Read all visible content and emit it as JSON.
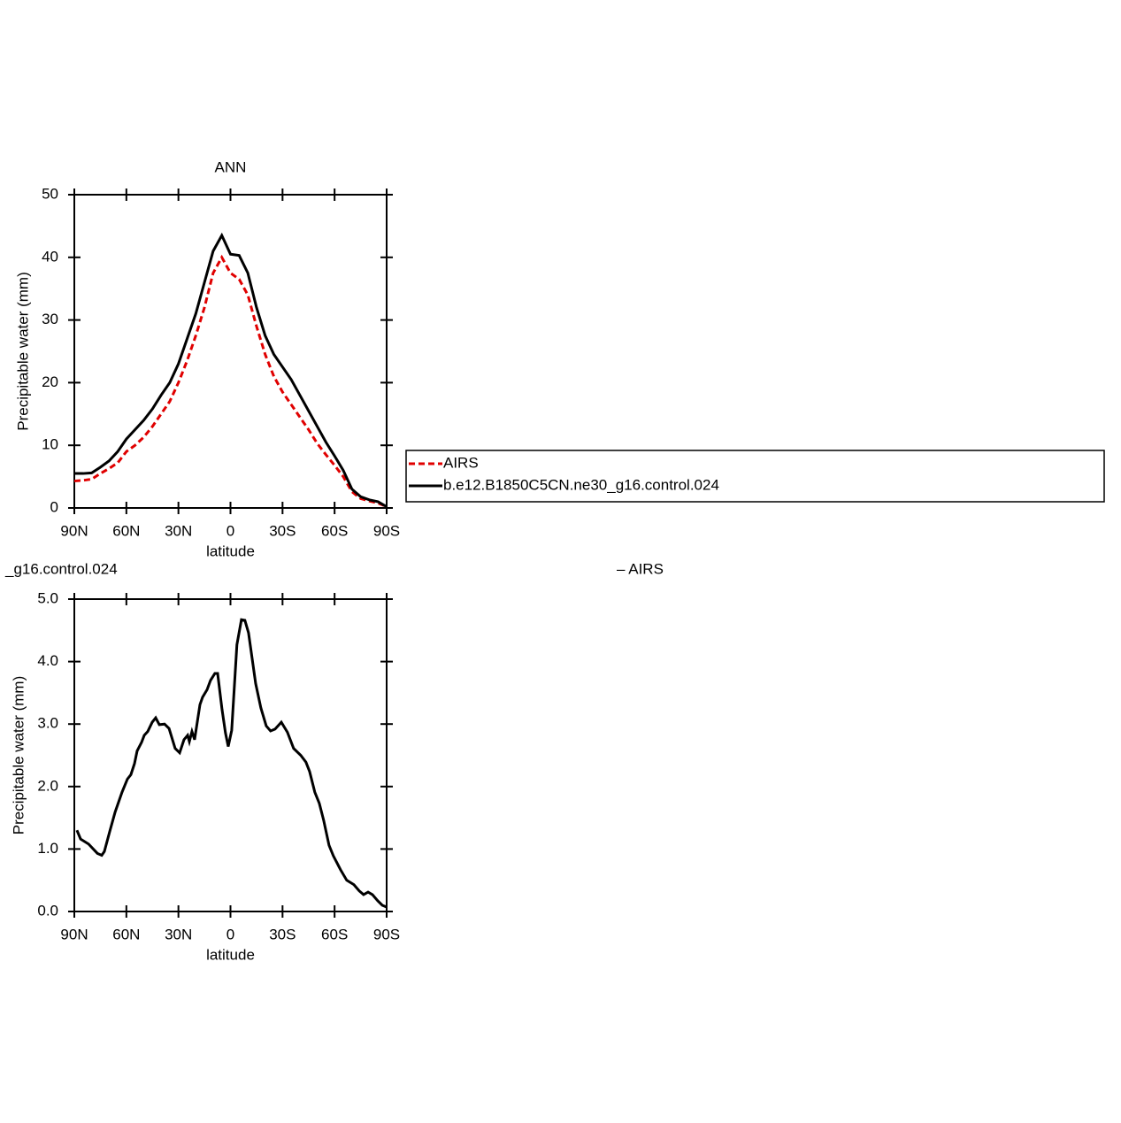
{
  "chart_data": [
    {
      "type": "line",
      "title": "ANN",
      "xlabel": "latitude",
      "ylabel": "Precipitable water (mm)",
      "xlim": [
        90,
        -90
      ],
      "ylim": [
        0,
        50
      ],
      "xticks": [
        {
          "value": 90,
          "label": "90N"
        },
        {
          "value": 60,
          "label": "60N"
        },
        {
          "value": 30,
          "label": "30N"
        },
        0,
        {
          "value": -30,
          "label": "30S"
        },
        {
          "value": -60,
          "label": "60S"
        },
        {
          "value": -90,
          "label": "90S"
        }
      ],
      "yticks": [
        0,
        10,
        20,
        30,
        40,
        50
      ],
      "x": [
        90,
        85,
        80,
        75,
        70,
        65,
        60,
        55,
        50,
        45,
        40,
        35,
        30,
        25,
        20,
        15,
        10,
        5,
        0,
        -5,
        -10,
        -15,
        -20,
        -25,
        -30,
        -35,
        -40,
        -45,
        -50,
        -55,
        -60,
        -65,
        -70,
        -75,
        -80,
        -85,
        -90
      ],
      "series": [
        {
          "name": "AIRS",
          "color": "#e00000",
          "dashed": true,
          "values": [
            4.3,
            4.4,
            4.6,
            5.5,
            6.3,
            7.2,
            9,
            10,
            11.3,
            13,
            15,
            17,
            20,
            23.5,
            27.5,
            32,
            37.5,
            40,
            37.5,
            36.5,
            34,
            29,
            24.5,
            21,
            18.5,
            16.5,
            14.5,
            12.5,
            10.3,
            8.5,
            6.8,
            5,
            2.6,
            1.5,
            1.1,
            0.8,
            0.2
          ]
        },
        {
          "name": "b.e12.B1850C5CN.ne30_g16.control.024",
          "color": "#000000",
          "dashed": false,
          "values": [
            5.5,
            5.5,
            5.6,
            6.5,
            7.5,
            9,
            11,
            12.5,
            14,
            15.8,
            18,
            20,
            23,
            27,
            31,
            36,
            41,
            43.5,
            40.5,
            40.3,
            37.5,
            32,
            27.5,
            24.5,
            22.5,
            20.5,
            18,
            15.5,
            13,
            10.5,
            8.3,
            6,
            3,
            1.8,
            1.3,
            1.0,
            0.2
          ]
        }
      ]
    },
    {
      "type": "line",
      "left_title": "_g16.control.024",
      "right_title": "– AIRS",
      "xlabel": "latitude",
      "ylabel": "Precipitable water (mm)",
      "xlim": [
        90,
        -90
      ],
      "ylim": [
        0,
        5
      ],
      "xticks": [
        {
          "value": 90,
          "label": "90N"
        },
        {
          "value": 60,
          "label": "60N"
        },
        {
          "value": 30,
          "label": "30N"
        },
        0,
        {
          "value": -30,
          "label": "30S"
        },
        {
          "value": -60,
          "label": "60S"
        },
        {
          "value": -90,
          "label": "90S"
        }
      ],
      "yticks": [
        {
          "value": 0,
          "label": "0.0"
        },
        {
          "value": 1,
          "label": "1.0"
        },
        {
          "value": 2,
          "label": "2.0"
        },
        {
          "value": 3,
          "label": "3.0"
        },
        {
          "value": 4,
          "label": "4.0"
        },
        {
          "value": 5,
          "label": "5.0"
        }
      ],
      "color": "#000000",
      "x": [
        88.5,
        86.4,
        81.8,
        76.7,
        74.2,
        72.7,
        69.6,
        66.5,
        62.5,
        59.4,
        57.4,
        55.3,
        53.8,
        51.2,
        49.7,
        47.7,
        45.1,
        43.1,
        41.0,
        38.0,
        35.4,
        31.9,
        29.3,
        26.8,
        24.7,
        23.7,
        22.2,
        20.7,
        17.6,
        16.1,
        13.5,
        11.5,
        9.0,
        7.4,
        4.9,
        2.9,
        1.3,
        -0.7,
        -3.7,
        -6.3,
        -8.3,
        -10.4,
        -14.5,
        -17.5,
        -20.6,
        -23.1,
        -25.7,
        -29.3,
        -32.8,
        -36.4,
        -40.5,
        -43.5,
        -45.6,
        -48.6,
        -51.2,
        -53.7,
        -56.8,
        -59.3,
        -63.4,
        -67.0,
        -71.1,
        -74.2,
        -76.7,
        -79.3,
        -81.8,
        -84.9,
        -87.5,
        -90
      ],
      "values": [
        1.3,
        1.16,
        1.08,
        0.93,
        0.9,
        0.96,
        1.28,
        1.59,
        1.91,
        2.12,
        2.19,
        2.37,
        2.57,
        2.71,
        2.82,
        2.88,
        3.03,
        3.1,
        2.99,
        3.0,
        2.93,
        2.61,
        2.54,
        2.75,
        2.82,
        2.72,
        2.88,
        2.75,
        3.31,
        3.43,
        3.55,
        3.7,
        3.81,
        3.81,
        3.24,
        2.86,
        2.64,
        2.9,
        4.27,
        4.67,
        4.66,
        4.46,
        3.65,
        3.26,
        2.97,
        2.89,
        2.92,
        3.03,
        2.87,
        2.61,
        2.5,
        2.39,
        2.24,
        1.91,
        1.73,
        1.46,
        1.06,
        0.89,
        0.67,
        0.5,
        0.43,
        0.33,
        0.27,
        0.31,
        0.27,
        0.17,
        0.1,
        0.07
      ]
    }
  ]
}
